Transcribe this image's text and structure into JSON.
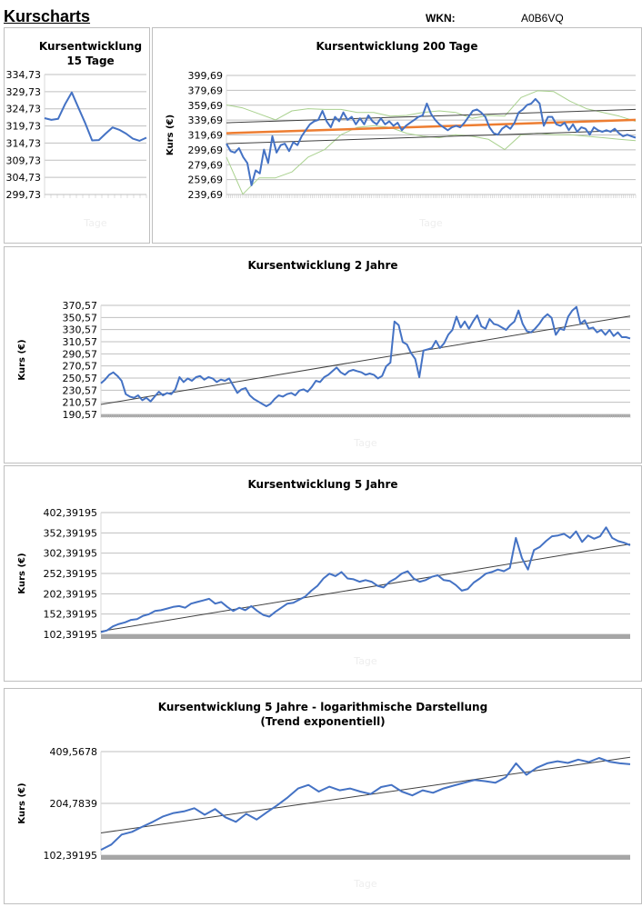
{
  "header": {
    "title": "Kurscharts",
    "wkn_label": "WKN:",
    "wkn_value": "A0B6VQ"
  },
  "colors": {
    "price": "#4472c4",
    "trend": "#404040",
    "trend_orange": "#ed7d31",
    "band": "#a9d18e",
    "grid": "#bfbfbf"
  },
  "chart_data": [
    {
      "type": "line",
      "title": "Kursentwicklung 15 Tage",
      "xlabel": "Tage",
      "ylabel": "",
      "ylim": [
        299.73,
        334.73
      ],
      "yticks": [
        "334,73",
        "329,73",
        "324,73",
        "319,73",
        "314,73",
        "309,73",
        "304,73",
        "299,73"
      ],
      "grid": true,
      "series": [
        {
          "values": [
            322,
            321.5,
            321.8,
            326,
            329.5,
            325,
            320.5,
            315.5,
            315.6,
            317.5,
            319.3,
            318.6,
            317.5,
            316,
            315.4,
            316.3
          ]
        }
      ]
    },
    {
      "type": "line",
      "title": "Kursentwicklung 200 Tage",
      "xlabel": "Tage",
      "ylabel": "Kurs (€)",
      "ylim": [
        239.69,
        399.69
      ],
      "yticks": [
        "399,69",
        "379,69",
        "359,69",
        "339,69",
        "319,69",
        "299,69",
        "279,69",
        "259,69",
        "239,69"
      ],
      "grid": true,
      "series": [
        {
          "role": "price",
          "values": [
            308,
            298,
            296,
            302,
            290,
            282,
            252,
            272,
            268,
            300,
            282,
            318,
            296,
            306,
            308,
            298,
            310,
            306,
            318,
            326,
            334,
            338,
            340,
            352,
            338,
            330,
            344,
            338,
            350,
            340,
            344,
            334,
            342,
            334,
            346,
            338,
            334,
            342,
            334,
            338,
            332,
            336,
            326,
            332,
            336,
            340,
            344,
            346,
            362,
            348,
            340,
            334,
            330,
            326,
            330,
            332,
            330,
            336,
            344,
            352,
            354,
            350,
            344,
            330,
            322,
            320,
            328,
            332,
            328,
            336,
            350,
            354,
            360,
            362,
            368,
            362,
            332,
            344,
            344,
            334,
            332,
            336,
            326,
            334,
            324,
            330,
            328,
            320,
            330,
            326,
            324,
            326,
            324,
            328,
            322,
            318,
            320,
            318,
            316
          ]
        },
        {
          "role": "band",
          "values": [
            360,
            356,
            348,
            340,
            352,
            355,
            354,
            354,
            350,
            350,
            345,
            346,
            350,
            352,
            350,
            342,
            346,
            345,
            370,
            379,
            378,
            365,
            355,
            350,
            345,
            338
          ]
        },
        {
          "role": "band",
          "values": [
            290,
            240,
            262,
            262,
            270,
            290,
            300,
            320,
            330,
            332,
            330,
            322,
            318,
            316,
            320,
            318,
            314,
            300,
            320,
            322,
            320,
            320,
            318,
            316,
            314,
            312
          ]
        },
        {
          "role": "trend_orange",
          "values": [
            322,
            340
          ]
        },
        {
          "role": "trend",
          "values": [
            336,
            354
          ]
        },
        {
          "role": "trend",
          "values": [
            308,
            326
          ]
        }
      ]
    },
    {
      "type": "line",
      "title": "Kursentwicklung 2 Jahre",
      "xlabel": "Tage",
      "ylabel": "Kurs (€)",
      "ylim": [
        190.57,
        370.57
      ],
      "yticks": [
        "370,57",
        "350,57",
        "330,57",
        "310,57",
        "290,57",
        "270,57",
        "250,57",
        "230,57",
        "210,57",
        "190,57"
      ],
      "grid": true,
      "series": [
        {
          "role": "price",
          "values": [
            242,
            248,
            256,
            260,
            254,
            246,
            224,
            220,
            218,
            222,
            214,
            218,
            212,
            220,
            228,
            222,
            226,
            224,
            232,
            252,
            244,
            250,
            246,
            252,
            254,
            248,
            252,
            250,
            244,
            248,
            246,
            250,
            238,
            226,
            232,
            234,
            222,
            216,
            212,
            208,
            204,
            208,
            216,
            222,
            220,
            224,
            226,
            222,
            230,
            232,
            228,
            236,
            246,
            244,
            252,
            256,
            262,
            268,
            260,
            256,
            262,
            264,
            262,
            260,
            256,
            258,
            256,
            250,
            254,
            270,
            276,
            344,
            338,
            310,
            306,
            292,
            282,
            252,
            296,
            298,
            300,
            312,
            300,
            308,
            322,
            330,
            352,
            334,
            344,
            332,
            344,
            354,
            336,
            332,
            348,
            340,
            338,
            334,
            330,
            338,
            344,
            362,
            340,
            328,
            326,
            332,
            340,
            350,
            356,
            350,
            322,
            332,
            330,
            352,
            362,
            368,
            340,
            346,
            332,
            334,
            326,
            330,
            322,
            330,
            320,
            326,
            318,
            318,
            316
          ]
        },
        {
          "role": "trend",
          "values": [
            207,
            353
          ]
        }
      ]
    },
    {
      "type": "line",
      "title": "Kursentwicklung 5 Jahre",
      "xlabel": "Tage",
      "ylabel": "Kurs (€)",
      "ylim": [
        102.39195,
        402.39195
      ],
      "yticks": [
        "402,39195",
        "352,39195",
        "302,39195",
        "252,39195",
        "202,39195",
        "152,39195",
        "102,39195"
      ],
      "grid": true,
      "series": [
        {
          "role": "price",
          "values": [
            108,
            112,
            122,
            128,
            132,
            138,
            140,
            148,
            152,
            160,
            162,
            166,
            170,
            172,
            168,
            178,
            182,
            186,
            190,
            178,
            182,
            170,
            160,
            168,
            162,
            172,
            160,
            150,
            146,
            158,
            168,
            178,
            180,
            188,
            196,
            210,
            222,
            240,
            252,
            246,
            256,
            240,
            238,
            232,
            236,
            232,
            222,
            218,
            232,
            240,
            252,
            258,
            240,
            232,
            236,
            244,
            248,
            236,
            234,
            224,
            210,
            214,
            230,
            240,
            252,
            256,
            262,
            258,
            266,
            340,
            290,
            262,
            310,
            318,
            332,
            344,
            346,
            350,
            340,
            356,
            330,
            346,
            338,
            344,
            366,
            340,
            332,
            328,
            322
          ]
        },
        {
          "role": "trend",
          "values": [
            110,
            325
          ]
        }
      ]
    },
    {
      "type": "line",
      "title": "Kursentwicklung 5 Jahre - logarithmische Darstellung",
      "subtitle": "(Trend exponentiell)",
      "xlabel": "Tage",
      "ylabel": "Kurs (€)",
      "ylim": [
        102.39195,
        409.5678
      ],
      "log_scale": true,
      "yticks": [
        "409,5678",
        "204,7839",
        "102,39195"
      ],
      "grid": true,
      "series": [
        {
          "role": "price",
          "values": [
            110,
            118,
            135,
            140,
            150,
            160,
            172,
            180,
            184,
            192,
            176,
            190,
            170,
            160,
            178,
            165,
            182,
            200,
            222,
            250,
            262,
            240,
            256,
            244,
            250,
            240,
            232,
            255,
            262,
            240,
            228,
            244,
            236,
            250,
            260,
            270,
            280,
            276,
            270,
            290,
            350,
            300,
            330,
            350,
            360,
            352,
            368,
            356,
            376,
            358,
            350,
            346
          ]
        },
        {
          "role": "trend",
          "values": [
            138,
            380
          ]
        }
      ]
    }
  ]
}
